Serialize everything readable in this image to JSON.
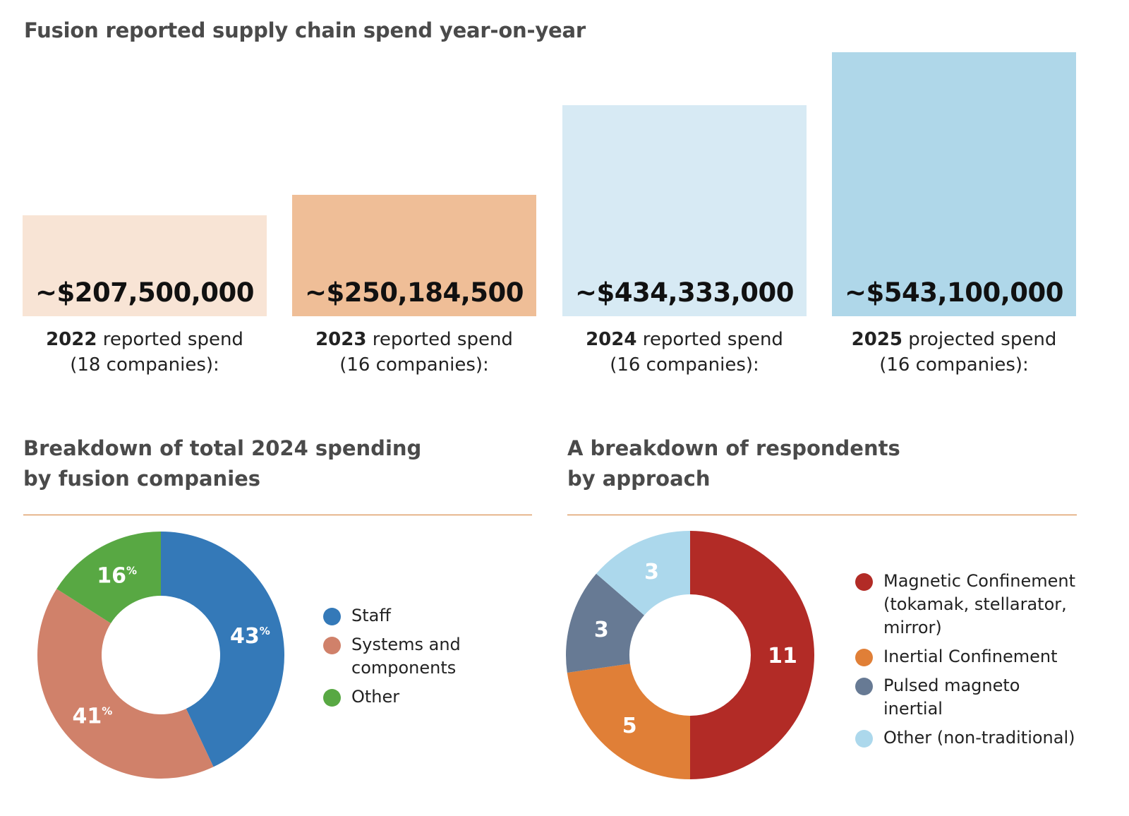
{
  "chart_data": [
    {
      "type": "bar",
      "title": "Fusion reported supply chain spend year-on-year",
      "categories": [
        "2022",
        "2023",
        "2024",
        "2025"
      ],
      "values": [
        207500000,
        250184500,
        434333000,
        543100000
      ],
      "value_labels": [
        "~$207,500,000",
        "~$250,184,500",
        "~$434,333,000",
        "~$543,100,000"
      ],
      "captions": [
        {
          "year": "2022",
          "kind": "reported spend",
          "companies": "(18 companies):"
        },
        {
          "year": "2023",
          "kind": "reported spend",
          "companies": "(16 companies):"
        },
        {
          "year": "2024",
          "kind": "reported spend",
          "companies": "(16 companies):"
        },
        {
          "year": "2025",
          "kind": "projected spend",
          "companies": "(16 companies):"
        }
      ],
      "colors": [
        "#f8e4d5",
        "#efbe97",
        "#d7eaf4",
        "#afd7e9"
      ],
      "grid": false,
      "legend": "none"
    },
    {
      "type": "pie",
      "title_lines": [
        "Breakdown of total 2024 spending",
        "by fusion companies"
      ],
      "unit": "%",
      "slices": [
        {
          "label": "Staff",
          "value": 43,
          "color": "#3479b8"
        },
        {
          "label": "Systems and components",
          "label_lines": [
            "Systems and",
            "components"
          ],
          "value": 41,
          "color": "#d0816a"
        },
        {
          "label": "Other",
          "value": 16,
          "color": "#58a843"
        }
      ],
      "legend": "right"
    },
    {
      "type": "pie",
      "title_lines": [
        "A breakdown of respondents",
        "by approach"
      ],
      "unit": "",
      "slices": [
        {
          "label": "Magnetic Confinement (tokamak, stellarator, mirror)",
          "label_lines": [
            "Magnetic Confinement",
            "(tokamak, stellarator,",
            "mirror)"
          ],
          "value": 11,
          "color": "#b22b26"
        },
        {
          "label": "Inertial Confinement",
          "label_lines": [
            "Inertial Confinement"
          ],
          "value": 5,
          "color": "#e07f37"
        },
        {
          "label": "Pulsed magneto inertial",
          "label_lines": [
            "Pulsed magneto",
            "inertial"
          ],
          "value": 3,
          "color": "#677a94"
        },
        {
          "label": "Other (non-traditional)",
          "label_lines": [
            "Other (non-traditional)"
          ],
          "value": 3,
          "color": "#acd8ec"
        }
      ],
      "legend": "right"
    }
  ]
}
